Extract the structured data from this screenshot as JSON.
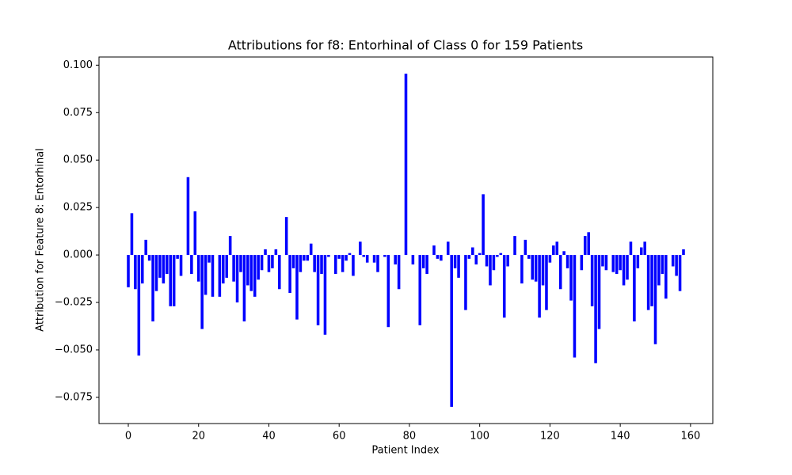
{
  "chart_data": {
    "type": "bar",
    "title": "Attributions for f8: Entorhinal of Class 0 for 159 Patients",
    "xlabel": "Patient Index",
    "ylabel": "Attribution for Feature 8: Entorhinal",
    "color": "#0000ff",
    "bar_width": 0.8,
    "x": [
      0,
      1,
      2,
      3,
      4,
      5,
      6,
      7,
      8,
      9,
      10,
      11,
      12,
      13,
      14,
      15,
      16,
      17,
      18,
      19,
      20,
      21,
      22,
      23,
      24,
      25,
      26,
      27,
      28,
      29,
      30,
      31,
      32,
      33,
      34,
      35,
      36,
      37,
      38,
      39,
      40,
      41,
      42,
      43,
      44,
      45,
      46,
      47,
      48,
      49,
      50,
      51,
      52,
      53,
      54,
      55,
      56,
      57,
      58,
      59,
      60,
      61,
      62,
      63,
      64,
      65,
      66,
      67,
      68,
      69,
      70,
      71,
      72,
      73,
      74,
      75,
      76,
      77,
      78,
      79,
      80,
      81,
      82,
      83,
      84,
      85,
      86,
      87,
      88,
      89,
      90,
      91,
      92,
      93,
      94,
      95,
      96,
      97,
      98,
      99,
      100,
      101,
      102,
      103,
      104,
      105,
      106,
      107,
      108,
      109,
      110,
      111,
      112,
      113,
      114,
      115,
      116,
      117,
      118,
      119,
      120,
      121,
      122,
      123,
      124,
      125,
      126,
      127,
      128,
      129,
      130,
      131,
      132,
      133,
      134,
      135,
      136,
      137,
      138,
      139,
      140,
      141,
      142,
      143,
      144,
      145,
      146,
      147,
      148,
      149,
      150,
      151,
      152,
      153,
      154,
      155,
      156,
      157,
      158
    ],
    "values": [
      -0.017,
      0.022,
      -0.018,
      -0.053,
      -0.015,
      0.008,
      -0.003,
      -0.035,
      -0.019,
      -0.012,
      -0.015,
      -0.01,
      -0.027,
      -0.027,
      -0.002,
      -0.011,
      0.0,
      0.041,
      -0.01,
      0.023,
      -0.014,
      -0.039,
      -0.021,
      -0.004,
      -0.022,
      0.0,
      -0.022,
      -0.015,
      -0.012,
      0.01,
      -0.014,
      -0.025,
      -0.009,
      -0.035,
      -0.016,
      -0.019,
      -0.022,
      -0.013,
      -0.008,
      0.003,
      -0.009,
      -0.007,
      0.003,
      -0.018,
      0.0,
      0.02,
      -0.02,
      -0.007,
      -0.034,
      -0.009,
      -0.003,
      -0.003,
      0.006,
      -0.009,
      -0.037,
      -0.01,
      -0.042,
      -0.001,
      0.0,
      -0.01,
      -0.002,
      -0.009,
      -0.003,
      0.001,
      -0.011,
      0.0,
      0.007,
      -0.001,
      -0.004,
      0.0,
      -0.004,
      -0.009,
      0.0,
      -0.001,
      -0.038,
      0.0,
      -0.005,
      -0.018,
      0.0,
      0.0955,
      0.0,
      -0.005,
      0.0,
      -0.037,
      -0.007,
      -0.01,
      0.0,
      0.005,
      -0.002,
      -0.003,
      0.0,
      0.007,
      -0.08,
      -0.007,
      -0.012,
      0.0,
      -0.029,
      -0.002,
      0.004,
      -0.005,
      0.001,
      0.032,
      -0.006,
      -0.016,
      -0.008,
      -0.001,
      0.001,
      -0.033,
      -0.006,
      0.0,
      0.01,
      0.0,
      -0.015,
      0.008,
      -0.002,
      -0.013,
      -0.014,
      -0.033,
      -0.016,
      -0.029,
      -0.004,
      0.005,
      0.007,
      -0.018,
      0.002,
      -0.007,
      -0.024,
      -0.054,
      0.0,
      -0.008,
      0.01,
      0.012,
      -0.027,
      -0.057,
      -0.039,
      -0.006,
      -0.008,
      0.0,
      -0.009,
      -0.01,
      -0.008,
      -0.016,
      -0.013,
      0.007,
      -0.035,
      -0.007,
      0.004,
      0.007,
      -0.029,
      -0.027,
      -0.047,
      -0.016,
      -0.01,
      -0.023,
      0.0,
      -0.006,
      -0.011,
      -0.019,
      0.003
    ],
    "xlim": [
      -8.34,
      166.34
    ],
    "ylim": [
      -0.0888,
      0.1043
    ],
    "xticks": [
      0,
      20,
      40,
      60,
      80,
      100,
      120,
      140,
      160
    ],
    "yticks": [
      {
        "value": -0.075,
        "label": "−0.075"
      },
      {
        "value": -0.05,
        "label": "−0.050"
      },
      {
        "value": -0.025,
        "label": "−0.025"
      },
      {
        "value": 0,
        "label": "0.000"
      },
      {
        "value": 0.025,
        "label": "0.025"
      },
      {
        "value": 0.05,
        "label": "0.050"
      },
      {
        "value": 0.075,
        "label": "0.075"
      },
      {
        "value": 0.1,
        "label": "0.100"
      }
    ],
    "grid": false
  }
}
